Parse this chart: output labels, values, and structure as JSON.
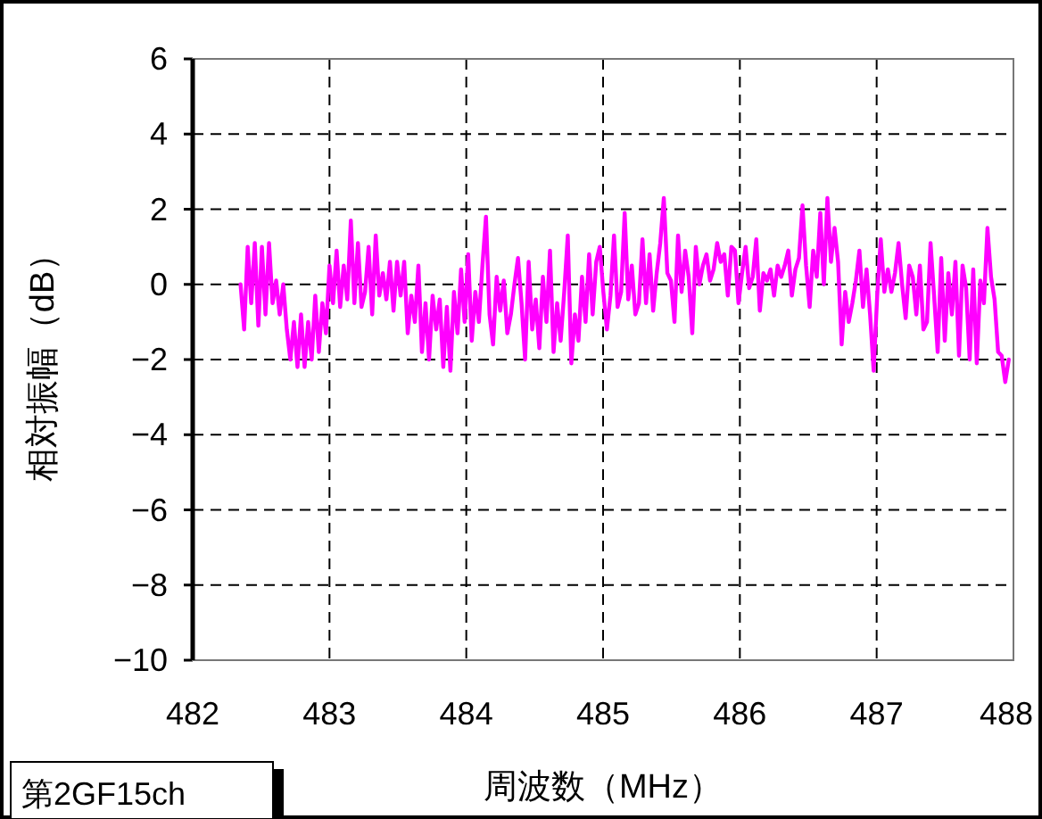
{
  "chart_data": {
    "type": "line",
    "xlabel": "周波数（MHz）",
    "ylabel": "相対振幅（dB）",
    "annotations": [
      "第2GF15ch"
    ],
    "xlim": [
      482,
      488
    ],
    "xticks": [
      482,
      483,
      484,
      485,
      486,
      487,
      488
    ],
    "ylim": [
      -10,
      6
    ],
    "yticks": [
      -10,
      -8,
      -6,
      -4,
      -2,
      0,
      2,
      4,
      6
    ],
    "grid": true,
    "line_style": "solid",
    "marker": "none",
    "series": [
      {
        "color": "#ff00ff",
        "x": [
          482.35,
          482.376,
          482.402,
          482.428,
          482.454,
          482.48,
          482.506,
          482.532,
          482.558,
          482.584,
          482.61,
          482.636,
          482.662,
          482.688,
          482.714,
          482.74,
          482.766,
          482.792,
          482.818,
          482.844,
          482.87,
          482.896,
          482.922,
          482.948,
          482.974,
          483.0,
          483.026,
          483.052,
          483.078,
          483.104,
          483.13,
          483.156,
          483.182,
          483.208,
          483.234,
          483.26,
          483.286,
          483.312,
          483.338,
          483.364,
          483.39,
          483.416,
          483.442,
          483.468,
          483.494,
          483.52,
          483.546,
          483.572,
          483.598,
          483.624,
          483.65,
          483.676,
          483.702,
          483.728,
          483.754,
          483.78,
          483.806,
          483.832,
          483.858,
          483.884,
          483.91,
          483.936,
          483.962,
          483.988,
          484.014,
          484.04,
          484.066,
          484.092,
          484.118,
          484.144,
          484.17,
          484.196,
          484.222,
          484.248,
          484.274,
          484.3,
          484.326,
          484.352,
          484.378,
          484.404,
          484.43,
          484.456,
          484.482,
          484.508,
          484.534,
          484.56,
          484.586,
          484.612,
          484.638,
          484.664,
          484.69,
          484.716,
          484.742,
          484.768,
          484.794,
          484.82,
          484.846,
          484.872,
          484.898,
          484.924,
          484.95,
          484.976,
          485.002,
          485.028,
          485.054,
          485.08,
          485.106,
          485.132,
          485.158,
          485.184,
          485.21,
          485.236,
          485.262,
          485.288,
          485.314,
          485.34,
          485.366,
          485.392,
          485.418,
          485.444,
          485.47,
          485.496,
          485.522,
          485.548,
          485.574,
          485.6,
          485.626,
          485.652,
          485.678,
          485.704,
          485.73,
          485.756,
          485.782,
          485.808,
          485.834,
          485.86,
          485.886,
          485.912,
          485.938,
          485.964,
          485.99,
          486.016,
          486.042,
          486.068,
          486.094,
          486.12,
          486.146,
          486.172,
          486.198,
          486.224,
          486.25,
          486.276,
          486.302,
          486.328,
          486.354,
          486.38,
          486.406,
          486.432,
          486.458,
          486.484,
          486.51,
          486.536,
          486.562,
          486.588,
          486.614,
          486.64,
          486.666,
          486.692,
          486.718,
          486.744,
          486.77,
          486.796,
          486.822,
          486.848,
          486.874,
          486.9,
          486.926,
          486.952,
          486.978,
          487.004,
          487.03,
          487.056,
          487.082,
          487.108,
          487.134,
          487.16,
          487.186,
          487.212,
          487.238,
          487.264,
          487.29,
          487.316,
          487.342,
          487.368,
          487.394,
          487.42,
          487.446,
          487.472,
          487.498,
          487.524,
          487.55,
          487.576,
          487.602,
          487.628,
          487.654,
          487.68,
          487.706,
          487.732,
          487.758,
          487.784,
          487.81,
          487.836,
          487.862,
          487.888,
          487.914,
          487.94,
          487.966
        ],
        "values": [
          0,
          -1.2,
          1.0,
          -0.5,
          1.1,
          -1.1,
          1.0,
          -0.8,
          1.1,
          -0.5,
          0.1,
          -0.8,
          0,
          -1.2,
          -2.0,
          -1.0,
          -2.2,
          -0.8,
          -2.2,
          -1.0,
          -2.0,
          -0.3,
          -1.8,
          -0.5,
          -1.3,
          0.5,
          -0.5,
          0.9,
          -0.6,
          0.5,
          -0.4,
          1.7,
          -0.5,
          1.1,
          -0.6,
          -0.2,
          1.0,
          -0.8,
          1.3,
          -0.3,
          0.3,
          -0.4,
          0.6,
          -0.7,
          0.6,
          -0.3,
          0.6,
          -1.3,
          -0.3,
          -1.0,
          0.5,
          -1.8,
          -0.5,
          -2.0,
          -0.3,
          -1.2,
          -0.4,
          -2.2,
          -0.6,
          -2.3,
          -0.2,
          -1.3,
          0.4,
          -1.0,
          0.8,
          -1.5,
          -0.2,
          -1.0,
          0.5,
          1.8,
          -0.8,
          -1.6,
          0.2,
          -0.7,
          0.1,
          -1.3,
          -0.8,
          0.0,
          0.7,
          -0.5,
          -2.0,
          0.6,
          -1.2,
          -0.4,
          -1.7,
          0.2,
          -1.0,
          0.9,
          -1.8,
          -0.5,
          -1.5,
          -0.2,
          1.3,
          -2.1,
          -0.8,
          -1.5,
          0.2,
          -1.0,
          0.8,
          -0.8,
          0.6,
          1.0,
          -0.2,
          -1.2,
          -0.3,
          1.3,
          -0.6,
          -0.2,
          1.9,
          -0.4,
          0.5,
          -0.8,
          -0.5,
          1.2,
          -0.5,
          0.8,
          -0.7,
          0.3,
          1.1,
          2.3,
          0.3,
          0.1,
          -1.0,
          1.3,
          -0.2,
          0.9,
          0.2,
          -1.3,
          1.0,
          0.0,
          0.5,
          0.8,
          0.1,
          0.4,
          1.1,
          0.6,
          0.8,
          -0.3,
          1.0,
          0.9,
          -0.5,
          0.3,
          1.0,
          -0.1,
          0.2,
          1.2,
          -0.7,
          0.3,
          0.1,
          0.4,
          -0.3,
          0.5,
          0.2,
          0.5,
          0.9,
          -0.3,
          0.4,
          0.7,
          2.1,
          0.5,
          -0.6,
          0.9,
          0.2,
          1.9,
          0.0,
          2.3,
          0.6,
          1.5,
          0.6,
          -1.6,
          -0.2,
          -1.0,
          -0.5,
          0.1,
          0.9,
          -0.6,
          0.4,
          -0.8,
          -2.3,
          -0.3,
          1.2,
          -0.2,
          0.4,
          -0.2,
          0.3,
          1.1,
          0.0,
          -0.9,
          0.5,
          0.2,
          -0.8,
          0.5,
          -1.2,
          -1.0,
          1.1,
          -0.3,
          -1.8,
          0.7,
          -1.5,
          0.3,
          -0.8,
          0.6,
          -1.9,
          0.5,
          -0.1,
          -2.0,
          0.4,
          -2.1,
          0.1,
          -0.5,
          1.5,
          0.2,
          -0.4,
          -1.8,
          -1.9,
          -2.6,
          -2.0
        ]
      }
    ]
  }
}
